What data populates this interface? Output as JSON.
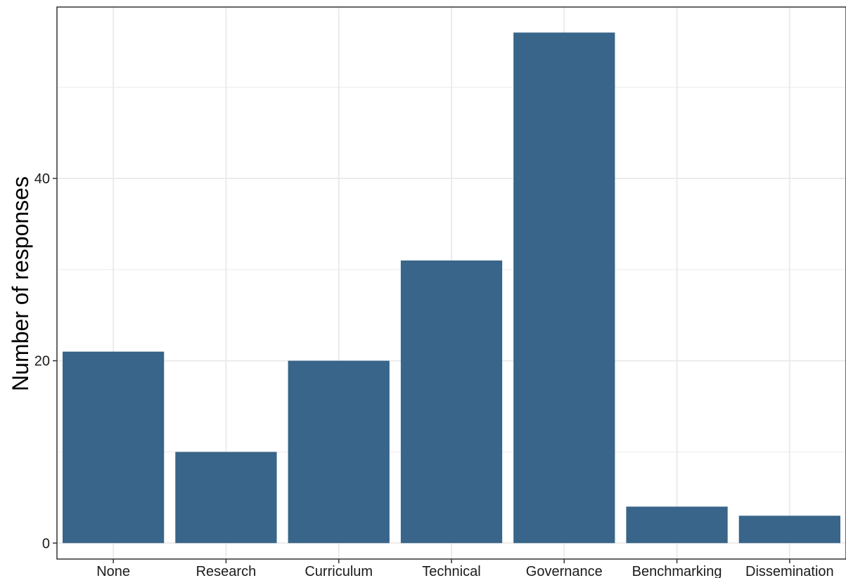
{
  "chart_data": {
    "type": "bar",
    "title": "",
    "xlabel": "",
    "ylabel": "Number of responses",
    "categories": [
      "None",
      "Research",
      "Curriculum",
      "Technical",
      "Governance",
      "Benchmarking",
      "Dissemination"
    ],
    "values": [
      21,
      10,
      20,
      31,
      56,
      4,
      3
    ],
    "ylim": [
      -1.75,
      58.8
    ],
    "yticks": [
      0,
      20,
      40
    ],
    "grid": true,
    "legend": "none",
    "colors": {
      "bar": "#386589",
      "grid": "#ebebeb",
      "panel_border": "#333333",
      "background": "#ffffff"
    }
  }
}
